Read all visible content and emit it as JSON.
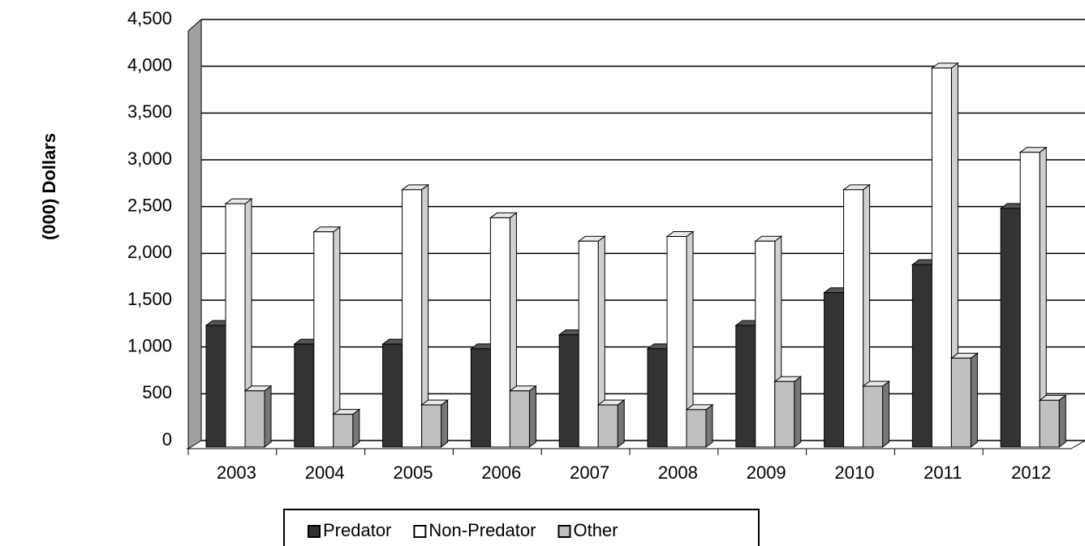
{
  "chart_data": {
    "type": "bar",
    "y_axis_label": "(000) Dollars",
    "categories": [
      "2003",
      "2004",
      "2005",
      "2006",
      "2007",
      "2008",
      "2009",
      "2010",
      "2011",
      "2012"
    ],
    "series": [
      {
        "name": "Predator",
        "color": "#333333",
        "values": [
          1300,
          1100,
          1100,
          1050,
          1200,
          1050,
          1300,
          1650,
          1950,
          2550
        ]
      },
      {
        "name": "Non-Predator",
        "color": "#ffffff",
        "values": [
          2600,
          2300,
          2750,
          2450,
          2200,
          2250,
          2200,
          2750,
          4050,
          3150
        ]
      },
      {
        "name": "Other",
        "color": "#c0c0c0",
        "values": [
          600,
          350,
          450,
          600,
          450,
          400,
          700,
          650,
          950,
          500
        ]
      }
    ],
    "ylim": [
      0,
      4500
    ],
    "yticks": [
      0,
      500,
      {
        "value": 1000,
        "label": "1,000"
      },
      {
        "value": 1500,
        "label": "1,500"
      },
      {
        "value": 2000,
        "label": "2,000"
      },
      {
        "value": 2500,
        "label": "2,500"
      },
      {
        "value": 3000,
        "label": "3,000"
      },
      {
        "value": 3500,
        "label": "3,500"
      },
      {
        "value": 4000,
        "label": "4,000"
      },
      {
        "value": 4500,
        "label": "4,500"
      }
    ],
    "grid": true,
    "legend": "bottom"
  }
}
